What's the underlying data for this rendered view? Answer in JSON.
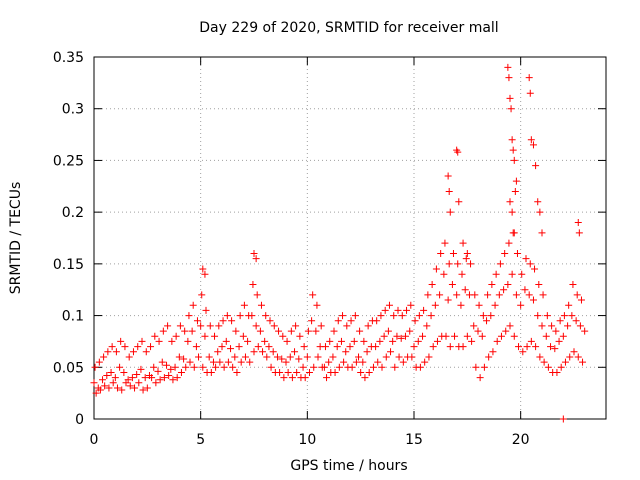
{
  "chart_data": {
    "type": "scatter",
    "title": "Day 229 of 2020, SRMTID for receiver mall",
    "xlabel": "GPS time / hours",
    "ylabel": "SRMTID / TECUs",
    "xlim": [
      0,
      24
    ],
    "ylim": [
      0,
      0.35
    ],
    "x_ticks": [
      0,
      5,
      10,
      15,
      20
    ],
    "x_tick_labels": [
      "0",
      "5",
      "10",
      "15",
      "20"
    ],
    "y_ticks": [
      0,
      0.05,
      0.1,
      0.15,
      0.2,
      0.25,
      0.3,
      0.35
    ],
    "y_tick_labels": [
      "0",
      "0.05",
      "0.1",
      "0.15",
      "0.2",
      "0.25",
      "0.3",
      "0.35"
    ],
    "grid": true,
    "marker": "plus",
    "series_color": "#ff0000",
    "series": [
      {
        "name": "SRMTID",
        "x": [
          0.0,
          0.2,
          0.4,
          0.6,
          0.8,
          1.0,
          1.2,
          1.4,
          1.6,
          1.8,
          2.0,
          2.2,
          2.4,
          2.6,
          2.8,
          3.0,
          3.2,
          3.4,
          3.6,
          3.8,
          4.0,
          4.2,
          4.4,
          4.6,
          4.8,
          5.0,
          5.2,
          5.4,
          5.6,
          5.8,
          6.0,
          6.2,
          6.4,
          6.6,
          6.8,
          7.0,
          7.2,
          7.4,
          7.6,
          7.8,
          8.0,
          8.2,
          8.4,
          8.6,
          8.8,
          9.0,
          9.2,
          9.4,
          9.6,
          9.8,
          10.0,
          10.2,
          10.4,
          10.6,
          10.8,
          11.0,
          11.2,
          11.4,
          11.6,
          11.8,
          12.0,
          12.2,
          12.4,
          12.6,
          12.8,
          13.0,
          13.2,
          13.4,
          13.6,
          13.8,
          14.0,
          14.2,
          14.4,
          14.6,
          14.8,
          15.0,
          15.2,
          15.4,
          15.6,
          15.8,
          16.0,
          16.2,
          16.4,
          16.6,
          16.8,
          17.0,
          17.2,
          17.4,
          17.6,
          17.8,
          18.0,
          18.2,
          18.4,
          18.6,
          18.8,
          19.0,
          19.2,
          19.4,
          19.6,
          19.8,
          20.0,
          20.2,
          20.4,
          20.6,
          20.8,
          21.0,
          21.2,
          21.4,
          21.6,
          21.8,
          22.0,
          22.2,
          22.4,
          22.6,
          22.8,
          23.0,
          0.1,
          0.3,
          0.5,
          0.7,
          0.9,
          1.1,
          1.3,
          1.5,
          1.7,
          1.9,
          2.1,
          2.3,
          2.5,
          2.7,
          2.9,
          3.1,
          3.3,
          3.5,
          3.7,
          3.9,
          4.1,
          4.3,
          4.5,
          4.7,
          4.9,
          5.1,
          5.3,
          5.5,
          5.7,
          5.9,
          6.1,
          6.3,
          6.5,
          6.7,
          6.9,
          7.1,
          7.3,
          7.5,
          7.7,
          7.9,
          8.1,
          8.3,
          8.5,
          8.7,
          8.9,
          9.1,
          9.3,
          9.5,
          9.7,
          9.9,
          10.1,
          10.3,
          10.5,
          10.7,
          10.9,
          11.1,
          11.3,
          11.5,
          11.7,
          11.9,
          12.1,
          12.3,
          12.5,
          12.7,
          12.9,
          13.1,
          13.3,
          13.5,
          13.7,
          13.9,
          14.1,
          14.3,
          14.5,
          14.7,
          14.9,
          15.1,
          15.3,
          15.5,
          15.7,
          15.9,
          16.1,
          16.3,
          16.5,
          16.7,
          16.9,
          17.1,
          17.3,
          17.5,
          17.7,
          17.9,
          18.1,
          18.3,
          18.5,
          18.7,
          18.9,
          19.1,
          19.3,
          19.5,
          19.7,
          19.9,
          20.1,
          20.3,
          20.5,
          20.7,
          20.9,
          21.1,
          21.3,
          21.5,
          21.7,
          21.9,
          22.1,
          22.3,
          22.5,
          22.7,
          22.9,
          0.05,
          0.25,
          0.45,
          0.65,
          0.85,
          1.05,
          1.25,
          1.45,
          1.65,
          1.85,
          2.05,
          2.25,
          2.45,
          2.65,
          2.85,
          3.05,
          3.25,
          3.45,
          3.65,
          3.85,
          4.05,
          4.25,
          4.45,
          4.65,
          4.85,
          5.05,
          5.25,
          5.45,
          5.65,
          5.85,
          6.05,
          6.25,
          6.45,
          6.65,
          6.85,
          7.05,
          7.25,
          7.45,
          7.65,
          7.85,
          8.05,
          8.25,
          8.45,
          8.65,
          8.85,
          9.05,
          9.25,
          9.45,
          9.65,
          9.85,
          10.05,
          10.25,
          10.45,
          10.65,
          10.85,
          11.05,
          11.25,
          11.45,
          11.65,
          11.85,
          12.05,
          12.25,
          12.45,
          12.65,
          12.85,
          13.05,
          13.25,
          13.45,
          13.65,
          13.85,
          14.05,
          14.25,
          14.45,
          14.65,
          14.85,
          15.05,
          15.25,
          15.45,
          15.65,
          15.85,
          16.05,
          16.25,
          16.45,
          16.65,
          16.85,
          17.05,
          17.25,
          17.45,
          17.65,
          17.85,
          18.05,
          18.25,
          18.45,
          18.65,
          18.85,
          19.05,
          19.25,
          19.45,
          19.65,
          19.85,
          20.05,
          20.25,
          20.45,
          20.65,
          20.85,
          21.05,
          21.25,
          21.45,
          21.65,
          21.85,
          22.05,
          22.25,
          22.45,
          22.65,
          22.85,
          16.6,
          16.65,
          16.7,
          17.0,
          17.05,
          17.1,
          17.3,
          17.5,
          19.4,
          19.45,
          19.5,
          19.55,
          19.6,
          19.65,
          19.7,
          19.75,
          19.8,
          19.5,
          19.6,
          19.7,
          20.4,
          20.45,
          20.5,
          20.6,
          20.7,
          20.8,
          20.9,
          21.0,
          7.5,
          7.6,
          5.1,
          5.2,
          22.7,
          22.75,
          22.0
        ],
        "y": [
          0.035,
          0.03,
          0.038,
          0.042,
          0.045,
          0.04,
          0.05,
          0.045,
          0.038,
          0.04,
          0.043,
          0.048,
          0.04,
          0.042,
          0.05,
          0.046,
          0.055,
          0.052,
          0.048,
          0.05,
          0.06,
          0.058,
          0.075,
          0.085,
          0.07,
          0.09,
          0.08,
          0.06,
          0.055,
          0.065,
          0.07,
          0.075,
          0.068,
          0.06,
          0.07,
          0.08,
          0.075,
          0.1,
          0.09,
          0.085,
          0.075,
          0.07,
          0.065,
          0.06,
          0.058,
          0.055,
          0.06,
          0.065,
          0.058,
          0.05,
          0.06,
          0.095,
          0.085,
          0.07,
          0.05,
          0.055,
          0.06,
          0.07,
          0.075,
          0.065,
          0.07,
          0.075,
          0.06,
          0.055,
          0.065,
          0.07,
          0.07,
          0.075,
          0.08,
          0.085,
          0.075,
          0.08,
          0.078,
          0.08,
          0.085,
          0.07,
          0.075,
          0.08,
          0.09,
          0.1,
          0.11,
          0.12,
          0.14,
          0.115,
          0.13,
          0.12,
          0.11,
          0.125,
          0.12,
          0.09,
          0.085,
          0.08,
          0.095,
          0.1,
          0.11,
          0.12,
          0.125,
          0.13,
          0.14,
          0.12,
          0.11,
          0.125,
          0.12,
          0.115,
          0.1,
          0.09,
          0.08,
          0.07,
          0.068,
          0.075,
          0.08,
          0.09,
          0.1,
          0.095,
          0.09,
          0.085,
          0.025,
          0.028,
          0.032,
          0.03,
          0.035,
          0.03,
          0.028,
          0.035,
          0.032,
          0.03,
          0.035,
          0.028,
          0.03,
          0.04,
          0.035,
          0.038,
          0.04,
          0.042,
          0.038,
          0.04,
          0.045,
          0.05,
          0.055,
          0.05,
          0.06,
          0.05,
          0.045,
          0.045,
          0.05,
          0.055,
          0.05,
          0.055,
          0.05,
          0.045,
          0.055,
          0.06,
          0.055,
          0.065,
          0.07,
          0.065,
          0.06,
          0.05,
          0.045,
          0.045,
          0.04,
          0.045,
          0.04,
          0.045,
          0.04,
          0.04,
          0.045,
          0.05,
          0.06,
          0.05,
          0.04,
          0.045,
          0.045,
          0.05,
          0.055,
          0.05,
          0.05,
          0.055,
          0.045,
          0.04,
          0.045,
          0.05,
          0.055,
          0.05,
          0.06,
          0.065,
          0.05,
          0.06,
          0.055,
          0.06,
          0.06,
          0.05,
          0.05,
          0.055,
          0.06,
          0.07,
          0.075,
          0.08,
          0.08,
          0.07,
          0.08,
          0.07,
          0.07,
          0.08,
          0.075,
          0.05,
          0.04,
          0.05,
          0.06,
          0.065,
          0.075,
          0.08,
          0.085,
          0.09,
          0.08,
          0.07,
          0.065,
          0.07,
          0.075,
          0.07,
          0.06,
          0.055,
          0.05,
          0.045,
          0.045,
          0.05,
          0.055,
          0.06,
          0.065,
          0.06,
          0.055,
          0.05,
          0.055,
          0.06,
          0.065,
          0.07,
          0.065,
          0.075,
          0.07,
          0.06,
          0.065,
          0.07,
          0.075,
          0.065,
          0.07,
          0.08,
          0.075,
          0.085,
          0.09,
          0.075,
          0.08,
          0.09,
          0.085,
          0.1,
          0.11,
          0.095,
          0.12,
          0.105,
          0.09,
          0.08,
          0.09,
          0.095,
          0.1,
          0.095,
          0.085,
          0.1,
          0.11,
          0.1,
          0.13,
          0.12,
          0.11,
          0.1,
          0.095,
          0.09,
          0.085,
          0.08,
          0.075,
          0.085,
          0.09,
          0.08,
          0.07,
          0.085,
          0.12,
          0.11,
          0.09,
          0.07,
          0.075,
          0.085,
          0.095,
          0.1,
          0.09,
          0.095,
          0.1,
          0.085,
          0.075,
          0.09,
          0.095,
          0.095,
          0.1,
          0.105,
          0.11,
          0.1,
          0.105,
          0.1,
          0.105,
          0.11,
          0.095,
          0.1,
          0.105,
          0.12,
          0.13,
          0.145,
          0.16,
          0.17,
          0.15,
          0.16,
          0.15,
          0.14,
          0.155,
          0.15,
          0.12,
          0.11,
          0.1,
          0.12,
          0.13,
          0.14,
          0.15,
          0.16,
          0.17,
          0.18,
          0.16,
          0.14,
          0.155,
          0.15,
          0.145,
          0.13,
          0.12,
          0.1,
          0.09,
          0.085,
          0.095,
          0.1,
          0.11,
          0.13,
          0.12,
          0.115,
          0.235,
          0.22,
          0.2,
          0.26,
          0.258,
          0.21,
          0.17,
          0.16,
          0.34,
          0.33,
          0.31,
          0.3,
          0.27,
          0.26,
          0.25,
          0.22,
          0.23,
          0.21,
          0.2,
          0.18,
          0.33,
          0.315,
          0.27,
          0.265,
          0.245,
          0.21,
          0.2,
          0.18,
          0.16,
          0.155,
          0.145,
          0.14,
          0.19,
          0.18,
          0.0
        ]
      }
    ]
  }
}
